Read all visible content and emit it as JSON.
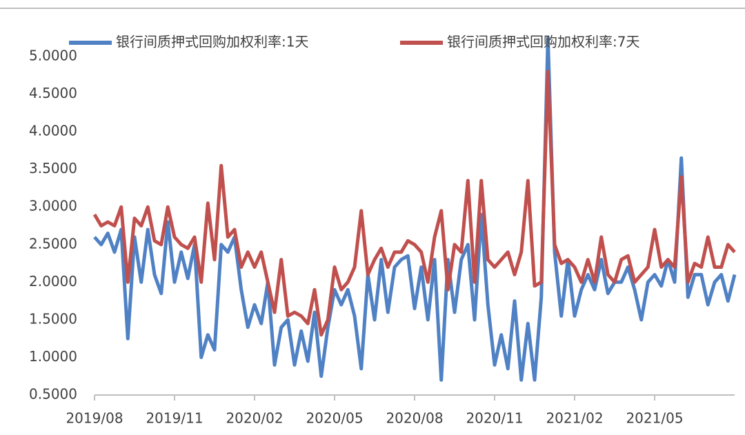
{
  "chart_data": {
    "type": "line",
    "categories": [
      "2019/08",
      null,
      null,
      null,
      null,
      null,
      null,
      null,
      null,
      null,
      null,
      null,
      "2019/11",
      null,
      null,
      null,
      null,
      null,
      null,
      null,
      null,
      null,
      null,
      null,
      "2020/02",
      null,
      null,
      null,
      null,
      null,
      null,
      null,
      null,
      null,
      null,
      null,
      "2020/05",
      null,
      null,
      null,
      null,
      null,
      null,
      null,
      null,
      null,
      null,
      null,
      "2020/08",
      null,
      null,
      null,
      null,
      null,
      null,
      null,
      null,
      null,
      null,
      null,
      "2020/11",
      null,
      null,
      null,
      null,
      null,
      null,
      null,
      null,
      null,
      null,
      null,
      "2021/02",
      null,
      null,
      null,
      null,
      null,
      null,
      null,
      null,
      null,
      null,
      null,
      "2021/05",
      null,
      null,
      null,
      null,
      null,
      null,
      null,
      null,
      null,
      null,
      null,
      null
    ],
    "series": [
      {
        "name": "银行间质押式回购加权利率:1天",
        "color": "#4f81c4",
        "values": [
          2.6,
          2.5,
          2.65,
          2.4,
          2.7,
          1.25,
          2.6,
          2.0,
          2.7,
          2.1,
          1.85,
          2.8,
          2.0,
          2.4,
          2.05,
          2.5,
          1.0,
          1.3,
          1.1,
          2.5,
          2.4,
          2.6,
          1.9,
          1.4,
          1.7,
          1.45,
          2.0,
          0.9,
          1.4,
          1.5,
          0.9,
          1.35,
          0.95,
          1.6,
          0.75,
          1.4,
          1.9,
          1.7,
          1.9,
          1.55,
          0.85,
          2.1,
          1.5,
          2.3,
          1.6,
          2.2,
          2.3,
          2.35,
          1.65,
          2.2,
          1.5,
          2.3,
          0.7,
          2.3,
          1.6,
          2.3,
          2.5,
          1.5,
          2.9,
          1.7,
          0.9,
          1.3,
          0.85,
          1.75,
          0.7,
          1.45,
          0.7,
          1.8,
          5.25,
          2.4,
          1.55,
          2.3,
          1.55,
          1.9,
          2.1,
          1.9,
          2.3,
          1.85,
          2.0,
          2.0,
          2.2,
          1.9,
          1.5,
          2.0,
          2.1,
          1.95,
          2.3,
          2.0,
          3.65,
          1.8,
          2.1,
          2.1,
          1.7,
          2.0,
          2.1,
          1.75,
          2.1
        ]
      },
      {
        "name": "银行间质押式回购加权利率:7天",
        "color": "#c0504d",
        "values": [
          2.9,
          2.75,
          2.8,
          2.75,
          3.0,
          2.0,
          2.85,
          2.75,
          3.0,
          2.55,
          2.5,
          3.0,
          2.6,
          2.5,
          2.45,
          2.6,
          2.0,
          3.05,
          2.3,
          3.55,
          2.6,
          2.7,
          2.2,
          2.4,
          2.2,
          2.4,
          2.0,
          1.6,
          2.3,
          1.55,
          1.6,
          1.55,
          1.45,
          1.9,
          1.3,
          1.5,
          2.2,
          1.9,
          2.0,
          2.2,
          2.95,
          2.1,
          2.3,
          2.45,
          2.2,
          2.4,
          2.4,
          2.55,
          2.5,
          2.4,
          2.0,
          2.6,
          2.95,
          1.9,
          2.5,
          2.4,
          3.35,
          2.0,
          3.35,
          2.3,
          2.2,
          2.3,
          2.4,
          2.1,
          2.4,
          3.35,
          1.95,
          2.0,
          4.8,
          2.5,
          2.25,
          2.3,
          2.2,
          2.0,
          2.3,
          2.0,
          2.6,
          2.1,
          2.0,
          2.3,
          2.35,
          2.0,
          2.1,
          2.2,
          2.7,
          2.2,
          2.3,
          2.2,
          3.4,
          2.0,
          2.25,
          2.2,
          2.6,
          2.2,
          2.2,
          2.5,
          2.4
        ]
      }
    ],
    "ylim": [
      0.5,
      5.0
    ],
    "yticks": [
      {
        "value": 0.5,
        "label": "0.5000"
      },
      {
        "value": 1.0,
        "label": "1.0000"
      },
      {
        "value": 1.5,
        "label": "1.5000"
      },
      {
        "value": 2.0,
        "label": "2.0000"
      },
      {
        "value": 2.5,
        "label": "2.5000"
      },
      {
        "value": 3.0,
        "label": "3.0000"
      },
      {
        "value": 3.5,
        "label": "3.5000"
      },
      {
        "value": 4.0,
        "label": "4.0000"
      },
      {
        "value": 4.5,
        "label": "4.5000"
      },
      {
        "value": 5.0,
        "label": "5.0000"
      }
    ],
    "grid": false,
    "legend": "top"
  }
}
